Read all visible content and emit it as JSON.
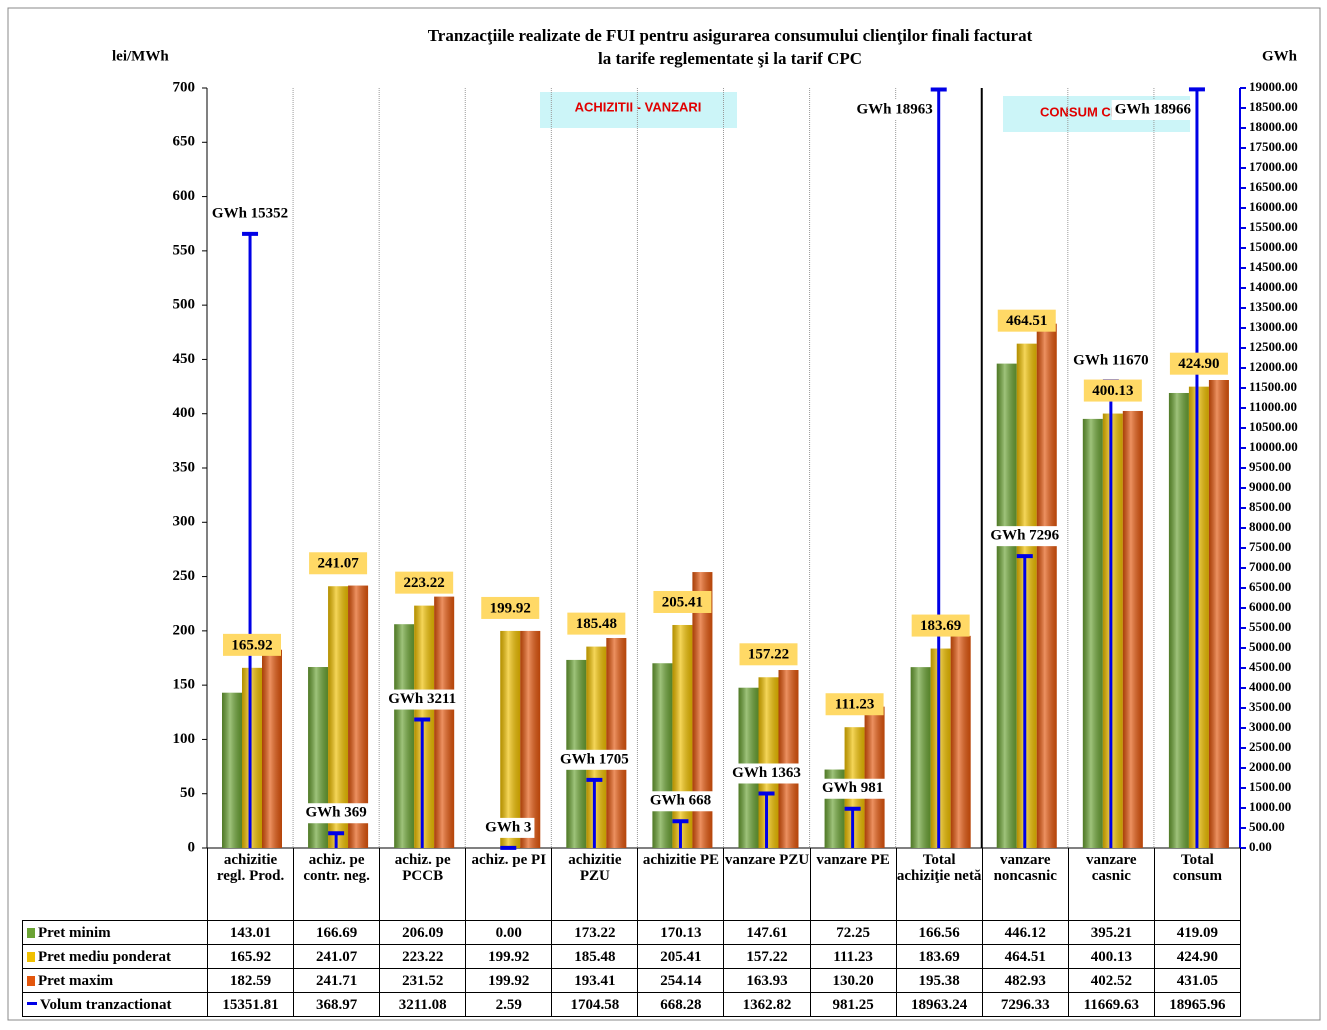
{
  "chart_data": {
    "type": "bar",
    "title": [
      "Tranzacţiile realizate de FUI pentru  asigurarea  consumului  clienţilor  finali facturat",
      "la  tarife reglementate şi la tarif CPC"
    ],
    "y_label": "lei/MWh",
    "y2_label": "GWh",
    "annotations": [
      "ACHIZITII - VANZARI",
      "CONSUM CLIENTI"
    ],
    "categories": [
      "achizitie regl. Prod.",
      "achiz. pe contr. neg.",
      "achiz. pe PCCB",
      "achiz. pe PI",
      "achizitie PZU",
      "achizitie PE",
      "vanzare PZU",
      "vanzare PE",
      "Total achiziţie netă",
      "vanzare noncasnic",
      "vanzare casnic",
      "Total consum"
    ],
    "series": [
      {
        "name": "Pret minim",
        "color": "#6ba334",
        "values": [
          143.01,
          166.69,
          206.09,
          0,
          173.22,
          170.13,
          147.61,
          72.25,
          166.56,
          446.12,
          395.21,
          419.09
        ],
        "value_labels": [
          "143.01",
          "166.69",
          "206.09",
          "0.00",
          "173.22",
          "170.13",
          "147.61",
          "72.25",
          "166.56",
          "446.12",
          "395.21",
          "419.09"
        ]
      },
      {
        "name": "Pret mediu ponderat",
        "color": "#f0c000",
        "data_labels": true,
        "values": [
          165.92,
          241.07,
          223.22,
          199.92,
          185.48,
          205.41,
          157.22,
          111.23,
          183.69,
          464.51,
          400.13,
          424.9
        ],
        "value_labels": [
          "165.92",
          "241.07",
          "223.22",
          "199.92",
          "185.48",
          "205.41",
          "157.22",
          "111.23",
          "183.69",
          "464.51",
          "400.13",
          "424.90"
        ]
      },
      {
        "name": "Pret maxim",
        "color": "#e3560c",
        "values": [
          182.59,
          241.71,
          231.52,
          199.92,
          193.41,
          254.14,
          163.93,
          130.2,
          195.38,
          482.93,
          402.52,
          431.05
        ],
        "value_labels": [
          "182.59",
          "241.71",
          "231.52",
          "199.92",
          "193.41",
          "254.14",
          "163.93",
          "130.20",
          "195.38",
          "482.93",
          "402.52",
          "431.05"
        ]
      },
      {
        "name": "Volum tranzactionat",
        "color": "#0000e6",
        "axis": "y2",
        "values": [
          15351.81,
          368.97,
          3211.08,
          2.59,
          1704.58,
          668.28,
          1362.82,
          981.25,
          18963.24,
          7296.33,
          11669.63,
          18965.96
        ],
        "value_labels": [
          "15351.81",
          "368.97",
          "3211.08",
          "2.59",
          "1704.58",
          "668.28",
          "1362.82",
          "981.25",
          "18963.24",
          "7296.33",
          "11669.63",
          "18965.96"
        ],
        "point_labels": [
          "GWh 15352",
          "GWh 369",
          "GWh 3211",
          "GWh 3",
          "GWh 1705",
          "GWh 668",
          "GWh 1363",
          "GWh 981",
          "GWh 18963",
          "GWh 7296",
          "GWh 11670",
          "GWh 18966"
        ]
      }
    ],
    "ylim": [
      0,
      700
    ],
    "yticks": [
      0,
      50,
      100,
      150,
      200,
      250,
      300,
      350,
      400,
      450,
      500,
      550,
      600,
      650,
      700
    ],
    "y2lim": [
      0,
      19000
    ],
    "y2ticks": [
      {
        "value": 0,
        "label": "0.00"
      },
      {
        "value": 500,
        "label": "500.00"
      },
      {
        "value": 1000,
        "label": "1000.00"
      },
      {
        "value": 1500,
        "label": "1500.00"
      },
      {
        "value": 2000,
        "label": "2000.00"
      },
      {
        "value": 2500,
        "label": "2500.00"
      },
      {
        "value": 3000,
        "label": "3000.00"
      },
      {
        "value": 3500,
        "label": "3500.00"
      },
      {
        "value": 4000,
        "label": "4000.00"
      },
      {
        "value": 4500,
        "label": "4500.00"
      },
      {
        "value": 5000,
        "label": "5000.00"
      },
      {
        "value": 5500,
        "label": "5500.00"
      },
      {
        "value": 6000,
        "label": "6000.00"
      },
      {
        "value": 6500,
        "label": "6500.00"
      },
      {
        "value": 7000,
        "label": "7000.00"
      },
      {
        "value": 7500,
        "label": "7500.00"
      },
      {
        "value": 8000,
        "label": "8000.00"
      },
      {
        "value": 8500,
        "label": "8500.00"
      },
      {
        "value": 9000,
        "label": "9000.00"
      },
      {
        "value": 9500,
        "label": "9500.00"
      },
      {
        "value": 10000,
        "label": "10000.00"
      },
      {
        "value": 10500,
        "label": "10500.00"
      },
      {
        "value": 11000,
        "label": "11000.00"
      },
      {
        "value": 11500,
        "label": "11500.00"
      },
      {
        "value": 12000,
        "label": "12000.00"
      },
      {
        "value": 12500,
        "label": "12500.00"
      },
      {
        "value": 13000,
        "label": "13000.00"
      },
      {
        "value": 13500,
        "label": "13500.00"
      },
      {
        "value": 14000,
        "label": "14000.00"
      },
      {
        "value": 14500,
        "label": "14500.00"
      },
      {
        "value": 15000,
        "label": "15000.00"
      },
      {
        "value": 15500,
        "label": "15500.00"
      },
      {
        "value": 16000,
        "label": "16000.00"
      },
      {
        "value": 16500,
        "label": "16500.00"
      },
      {
        "value": 17000,
        "label": "17000.00"
      },
      {
        "value": 17500,
        "label": "17500.00"
      },
      {
        "value": 18000,
        "label": "18000.00"
      },
      {
        "value": 18500,
        "label": "18500.00"
      },
      {
        "value": 19000,
        "label": "19000.00"
      }
    ],
    "grid": "x"
  }
}
